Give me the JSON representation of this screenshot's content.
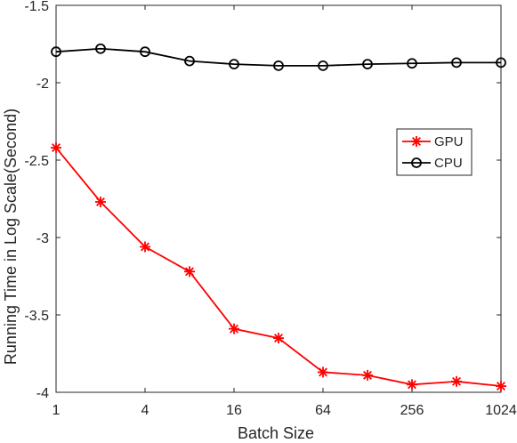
{
  "chart_data": {
    "type": "line",
    "xlabel": "Batch Size",
    "ylabel": "Running Time in Log Scale(Second)",
    "x": [
      1,
      2,
      4,
      8,
      16,
      32,
      64,
      128,
      256,
      512,
      1024
    ],
    "x_scale": "log2",
    "xlim": [
      1,
      1024
    ],
    "ylim": [
      -4,
      -1.5
    ],
    "x_ticks": [
      1,
      4,
      16,
      64,
      256,
      1024
    ],
    "x_tick_labels": [
      "1",
      "4",
      "16",
      "64",
      "256",
      "1024"
    ],
    "y_ticks": [
      -4,
      -3.5,
      -3,
      -2.5,
      -2,
      -1.5
    ],
    "y_tick_labels": [
      "-4",
      "-3.5",
      "-3",
      "-2.5",
      "-2",
      "-1.5"
    ],
    "grid": false,
    "legend_position": "right",
    "series": [
      {
        "name": "GPU",
        "color": "#ff0000",
        "marker": "asterisk",
        "values": [
          -2.42,
          -2.77,
          -3.06,
          -3.22,
          -3.59,
          -3.65,
          -3.87,
          -3.89,
          -3.95,
          -3.93,
          -3.96
        ]
      },
      {
        "name": "CPU",
        "color": "#000000",
        "marker": "circle",
        "values": [
          -1.8,
          -1.78,
          -1.8,
          -1.86,
          -1.88,
          -1.89,
          -1.89,
          -1.88,
          -1.875,
          -1.87,
          -1.87
        ]
      }
    ]
  }
}
